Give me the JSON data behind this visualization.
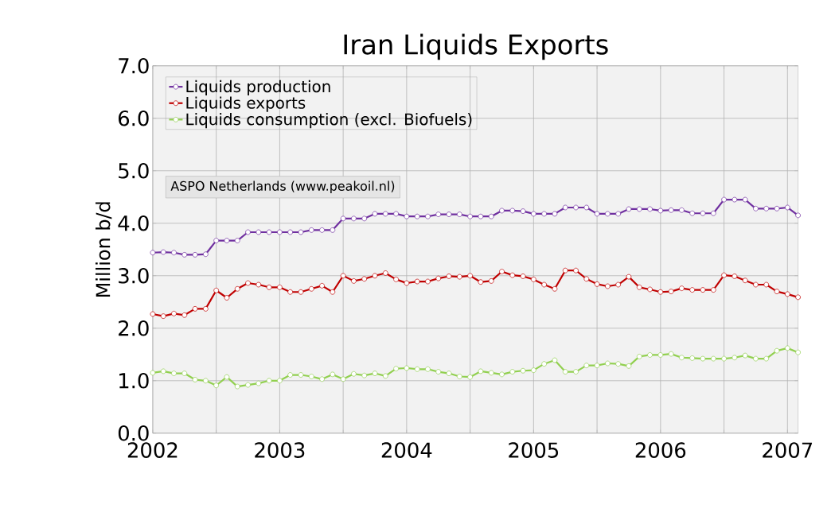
{
  "chart_data": {
    "type": "line",
    "title": "Iran Liquids Exports",
    "ylabel": "Million b/d",
    "x": [
      "2002-01",
      "2002-02",
      "2002-03",
      "2002-04",
      "2002-05",
      "2002-06",
      "2002-07",
      "2002-08",
      "2002-09",
      "2002-10",
      "2002-11",
      "2002-12",
      "2003-01",
      "2003-02",
      "2003-03",
      "2003-04",
      "2003-05",
      "2003-06",
      "2003-07",
      "2003-08",
      "2003-09",
      "2003-10",
      "2003-11",
      "2003-12",
      "2004-01",
      "2004-02",
      "2004-03",
      "2004-04",
      "2004-05",
      "2004-06",
      "2004-07",
      "2004-08",
      "2004-09",
      "2004-10",
      "2004-11",
      "2004-12",
      "2005-01",
      "2005-02",
      "2005-03",
      "2005-04",
      "2005-05",
      "2005-06",
      "2005-07",
      "2005-08",
      "2005-09",
      "2005-10",
      "2005-11",
      "2005-12",
      "2006-01",
      "2006-02",
      "2006-03",
      "2006-04",
      "2006-05",
      "2006-06",
      "2006-07",
      "2006-08",
      "2006-09",
      "2006-10",
      "2006-11",
      "2006-12",
      "2007-01",
      "2007-02"
    ],
    "series": [
      {
        "name": "Liquids production",
        "color": "#7030a0",
        "values": [
          3.44,
          3.45,
          3.44,
          3.4,
          3.4,
          3.41,
          3.67,
          3.67,
          3.67,
          3.83,
          3.83,
          3.83,
          3.83,
          3.83,
          3.83,
          3.87,
          3.87,
          3.87,
          4.09,
          4.09,
          4.09,
          4.18,
          4.18,
          4.18,
          4.13,
          4.13,
          4.13,
          4.17,
          4.17,
          4.17,
          4.13,
          4.13,
          4.13,
          4.24,
          4.24,
          4.23,
          4.18,
          4.18,
          4.18,
          4.3,
          4.3,
          4.3,
          4.18,
          4.18,
          4.18,
          4.27,
          4.27,
          4.27,
          4.24,
          4.25,
          4.25,
          4.19,
          4.19,
          4.19,
          4.45,
          4.45,
          4.45,
          4.28,
          4.28,
          4.28,
          4.3,
          4.15
        ]
      },
      {
        "name": "Liquids exports",
        "color": "#c00000",
        "values": [
          2.27,
          2.23,
          2.28,
          2.25,
          2.37,
          2.37,
          2.72,
          2.58,
          2.75,
          2.86,
          2.83,
          2.78,
          2.78,
          2.69,
          2.69,
          2.75,
          2.81,
          2.69,
          3.0,
          2.9,
          2.94,
          3.0,
          3.05,
          2.93,
          2.86,
          2.89,
          2.89,
          2.95,
          2.99,
          2.98,
          3.0,
          2.88,
          2.9,
          3.08,
          3.01,
          2.99,
          2.93,
          2.83,
          2.75,
          3.1,
          3.1,
          2.94,
          2.84,
          2.8,
          2.83,
          2.98,
          2.78,
          2.74,
          2.69,
          2.7,
          2.76,
          2.73,
          2.73,
          2.73,
          3.01,
          2.99,
          2.91,
          2.83,
          2.83,
          2.7,
          2.65,
          2.59
        ]
      },
      {
        "name": "Liquids consumption  (excl. Biofuels)",
        "color": "#92d050",
        "values": [
          1.15,
          1.18,
          1.14,
          1.14,
          1.02,
          1.0,
          0.91,
          1.07,
          0.89,
          0.92,
          0.95,
          1.0,
          1.0,
          1.11,
          1.11,
          1.08,
          1.03,
          1.12,
          1.03,
          1.13,
          1.1,
          1.14,
          1.09,
          1.23,
          1.24,
          1.22,
          1.22,
          1.17,
          1.14,
          1.08,
          1.07,
          1.18,
          1.15,
          1.12,
          1.17,
          1.19,
          1.2,
          1.32,
          1.39,
          1.17,
          1.17,
          1.29,
          1.29,
          1.33,
          1.32,
          1.28,
          1.46,
          1.49,
          1.49,
          1.51,
          1.44,
          1.43,
          1.42,
          1.42,
          1.42,
          1.44,
          1.48,
          1.42,
          1.42,
          1.57,
          1.62,
          1.54
        ]
      }
    ],
    "xlim": [
      "2002-01",
      "2007-02"
    ],
    "xticks": [
      {
        "value": "2002-01",
        "label": "2002"
      },
      {
        "value": "2002-07",
        "label": null
      },
      {
        "value": "2003-01",
        "label": "2003"
      },
      {
        "value": "2003-07",
        "label": null
      },
      {
        "value": "2004-01",
        "label": "2004"
      },
      {
        "value": "2004-07",
        "label": null
      },
      {
        "value": "2005-01",
        "label": "2005"
      },
      {
        "value": "2005-07",
        "label": null
      },
      {
        "value": "2006-01",
        "label": "2006"
      },
      {
        "value": "2006-07",
        "label": null
      },
      {
        "value": "2007-01",
        "label": "2007"
      }
    ],
    "ylim": [
      0,
      7
    ],
    "yticks": [
      {
        "value": 0,
        "label": "0.0"
      },
      {
        "value": 1,
        "label": "1.0"
      },
      {
        "value": 2,
        "label": "2.0"
      },
      {
        "value": 3,
        "label": "3.0"
      },
      {
        "value": 4,
        "label": "4.0"
      },
      {
        "value": 5,
        "label": "5.0"
      },
      {
        "value": 6,
        "label": "6.0"
      },
      {
        "value": 7,
        "label": "7.0"
      }
    ],
    "grid": true,
    "legend": "top left",
    "marker": "circle",
    "line_style": "solid",
    "annotations": [
      "ASPO Netherlands (www.peakoil.nl)"
    ]
  }
}
